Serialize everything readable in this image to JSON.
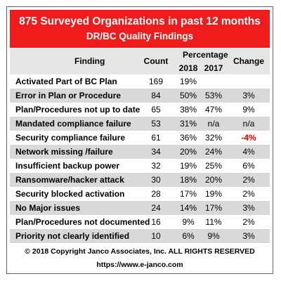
{
  "header": {
    "title": "875 Surveyed Organizations in past 12 months",
    "subtitle": "DR/BC Quality Findings"
  },
  "columns": {
    "finding": "Finding",
    "count": "Count",
    "percentage": "Percentage",
    "y2018": "2018",
    "y2017": "2017",
    "change": "Change"
  },
  "chart_data": {
    "type": "table",
    "title": "875 Surveyed Organizations in past 12 months",
    "subtitle": "DR/BC Quality Findings",
    "columns": [
      "Finding",
      "Count",
      "2018",
      "2017",
      "Change"
    ],
    "rows": [
      {
        "finding": "Activated Part of BC Plan",
        "count": "169",
        "y2018": "19%",
        "y2017": "",
        "change": ""
      },
      {
        "finding": "Error in Plan or Procedure",
        "count": "84",
        "y2018": "50%",
        "y2017": "53%",
        "change": "3%"
      },
      {
        "finding": "Plan/Procedures not up to date",
        "count": "65",
        "y2018": "38%",
        "y2017": "47%",
        "change": "9%"
      },
      {
        "finding": "Mandated compliance failure",
        "count": "53",
        "y2018": "31%",
        "y2017": "n/a",
        "change": "n/a"
      },
      {
        "finding": "Security compliance failure",
        "count": "61",
        "y2018": "36%",
        "y2017": "32%",
        "change": "-4%"
      },
      {
        "finding": "Network missing /failure",
        "count": "34",
        "y2018": "20%",
        "y2017": "24%",
        "change": "4%"
      },
      {
        "finding": "Insufficient backup power",
        "count": "32",
        "y2018": "19%",
        "y2017": "25%",
        "change": "6%"
      },
      {
        "finding": "Ransomware/hacker attack",
        "count": "30",
        "y2018": "18%",
        "y2017": "20%",
        "change": "2%"
      },
      {
        "finding": "Security blocked activation",
        "count": "28",
        "y2018": "17%",
        "y2017": "19%",
        "change": "2%"
      },
      {
        "finding": "No Major issues",
        "count": "24",
        "y2018": "14%",
        "y2017": "17%",
        "change": "3%"
      },
      {
        "finding": "Plan/Procedures not documented",
        "count": "16",
        "y2018": "9%",
        "y2017": "11%",
        "change": "2%"
      },
      {
        "finding": "Priority not clearly identified",
        "count": "10",
        "y2018": "6%",
        "y2017": "9%",
        "change": "3%"
      }
    ]
  },
  "footer": {
    "copyright": "© 2018 Copyright Janco Associates, Inc.  ALL RIGHTS RESERVED",
    "url": "https://www.e-janco.com"
  },
  "colors": {
    "banner": "#ee1c1c",
    "negative": "#e60000",
    "stripe": "#d9d9d9"
  }
}
